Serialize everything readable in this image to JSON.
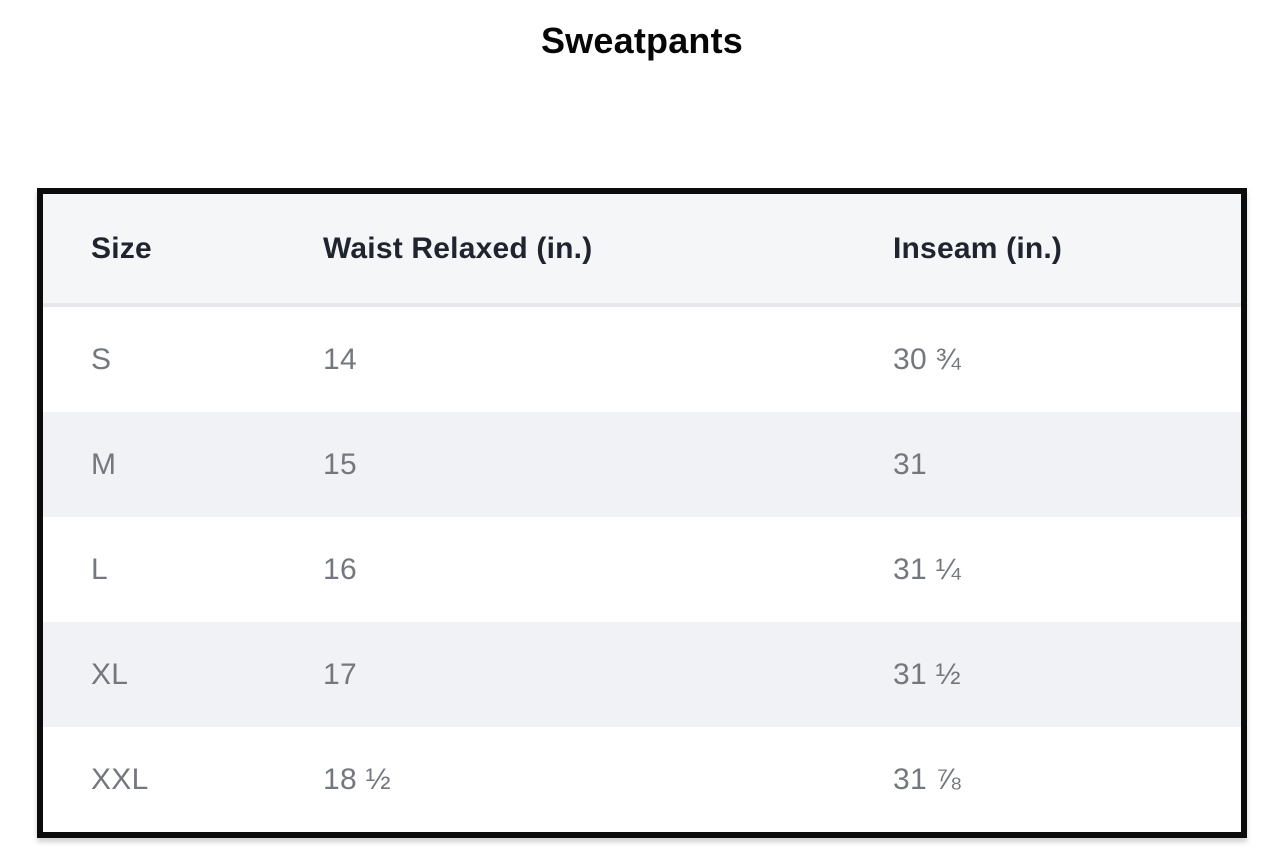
{
  "page": {
    "title": "Sweatpants"
  },
  "size_chart": {
    "columns": [
      "Size",
      "Waist Relaxed (in.)",
      "Inseam (in.)"
    ],
    "rows": [
      {
        "size": "S",
        "waist": "14",
        "inseam": "30 ¾"
      },
      {
        "size": "M",
        "waist": "15",
        "inseam": "31"
      },
      {
        "size": "L",
        "waist": "16",
        "inseam": "31 ¼"
      },
      {
        "size": "XL",
        "waist": "17",
        "inseam": "31 ½"
      },
      {
        "size": "XXL",
        "waist": "18 ½",
        "inseam": "31 ⅞"
      }
    ],
    "colors": {
      "table_border": "#0b0b0b",
      "header_background": "#f5f6f8",
      "header_text": "#20242e",
      "header_divider": "#e5e7ea",
      "alt_row_background": "#f0f2f5",
      "row_background": "#ffffff",
      "cell_text": "#74787e",
      "title_text": "#060606"
    }
  }
}
